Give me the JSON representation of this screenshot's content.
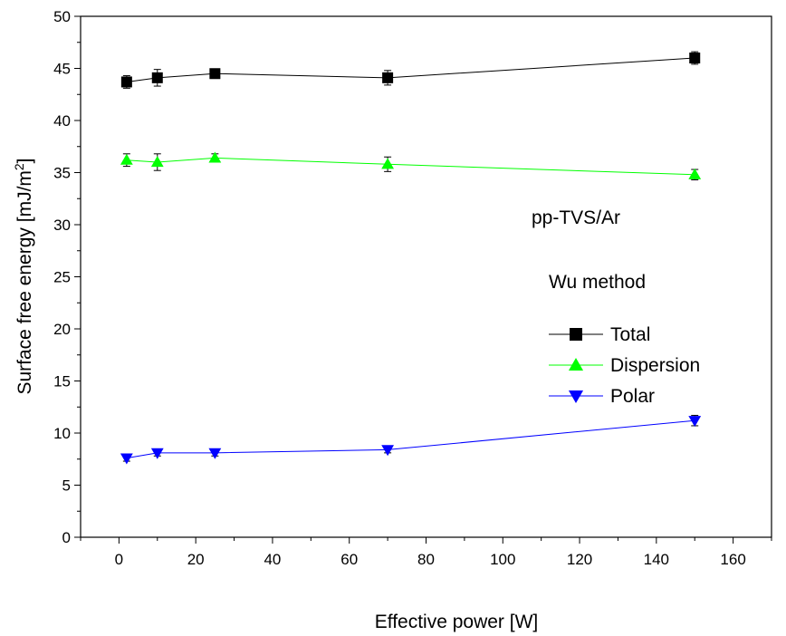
{
  "chart_data": {
    "type": "line",
    "xlabel": "Effective power [W]",
    "ylabel": "Surface free energy [mJ/m",
    "ylabel_sup": "2",
    "ylabel_end": "]",
    "xlim": [
      -10,
      170
    ],
    "ylim": [
      0,
      50
    ],
    "x_ticks": [
      0,
      20,
      40,
      60,
      80,
      100,
      120,
      140,
      160
    ],
    "y_ticks": [
      0,
      5,
      10,
      15,
      20,
      25,
      30,
      35,
      40,
      45,
      50
    ],
    "x_tick_labels": [
      "0",
      "20",
      "40",
      "60",
      "80",
      "100",
      "120",
      "140",
      "160"
    ],
    "y_tick_labels": [
      "0",
      "5",
      "10",
      "15",
      "20",
      "25",
      "30",
      "35",
      "40",
      "45",
      "50"
    ],
    "x": [
      2,
      10,
      25,
      70,
      150
    ],
    "annotations": [
      "pp-TVS/Ar",
      "Wu method"
    ],
    "legend_position": "right",
    "series": [
      {
        "name": "Total",
        "values": [
          43.7,
          44.1,
          44.5,
          44.1,
          46.0
        ],
        "errors": [
          0.6,
          0.8,
          0.3,
          0.7,
          0.6
        ],
        "color": "#000000",
        "marker": "square"
      },
      {
        "name": "Dispersion",
        "values": [
          36.2,
          36.0,
          36.4,
          35.8,
          34.8
        ],
        "errors": [
          0.6,
          0.8,
          0.4,
          0.7,
          0.5
        ],
        "color": "#00ff00",
        "marker": "triangle-up"
      },
      {
        "name": "Polar",
        "values": [
          7.6,
          8.1,
          8.1,
          8.4,
          11.2
        ],
        "errors": [
          0.3,
          0.3,
          0.3,
          0.3,
          0.5
        ],
        "color": "#0000ff",
        "marker": "triangle-down"
      }
    ]
  }
}
